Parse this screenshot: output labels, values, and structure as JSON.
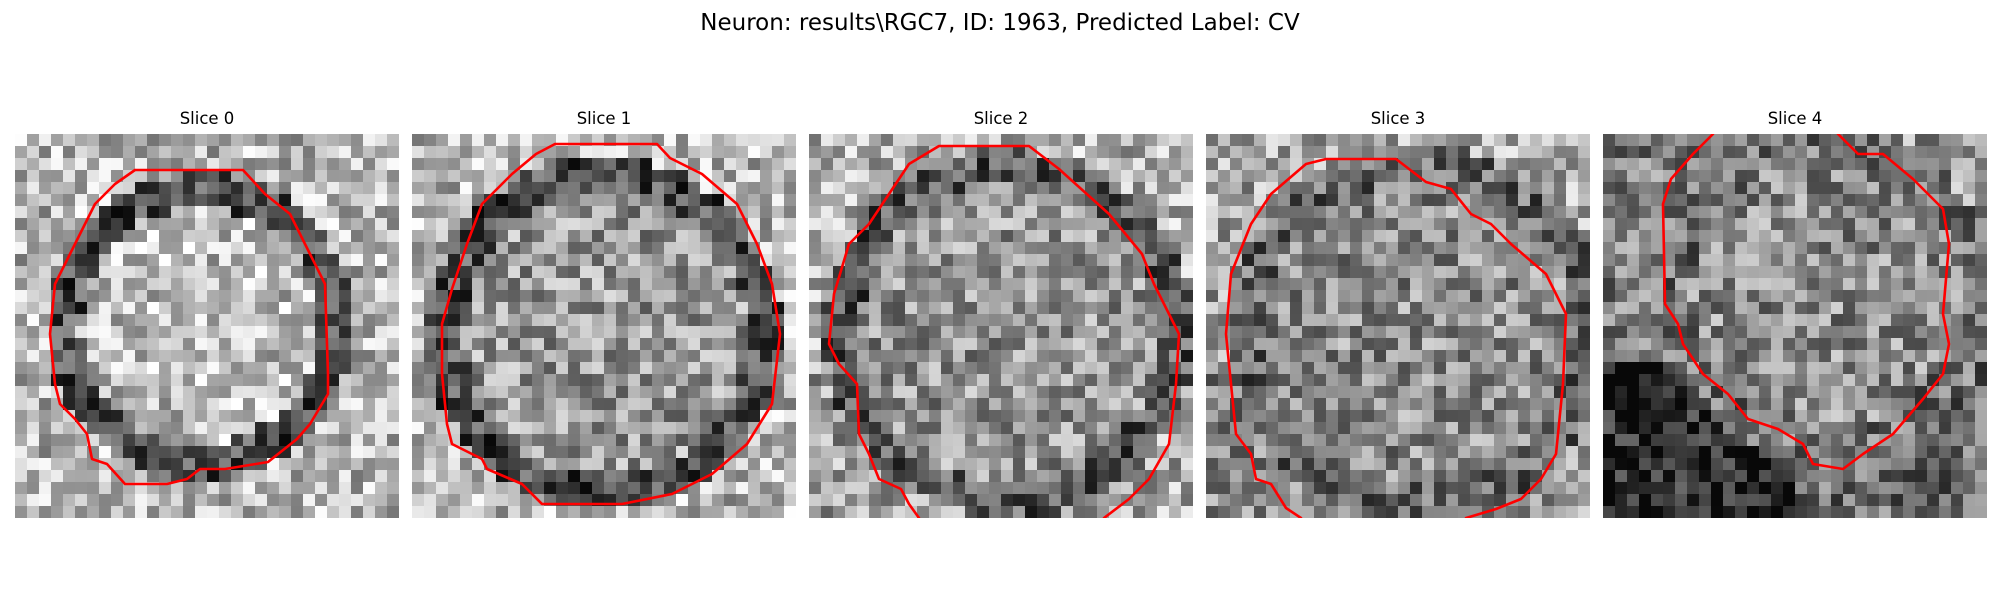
{
  "figure": {
    "title": "Neuron: results\\RGC7, ID: 1963, Predicted Label: CV",
    "contour_color": "#ff0000",
    "colormap": "gray"
  },
  "panels": [
    {
      "title": "Slice 0"
    },
    {
      "title": "Slice 1"
    },
    {
      "title": "Slice 2"
    },
    {
      "title": "Slice 3"
    },
    {
      "title": "Slice 4"
    }
  ]
}
